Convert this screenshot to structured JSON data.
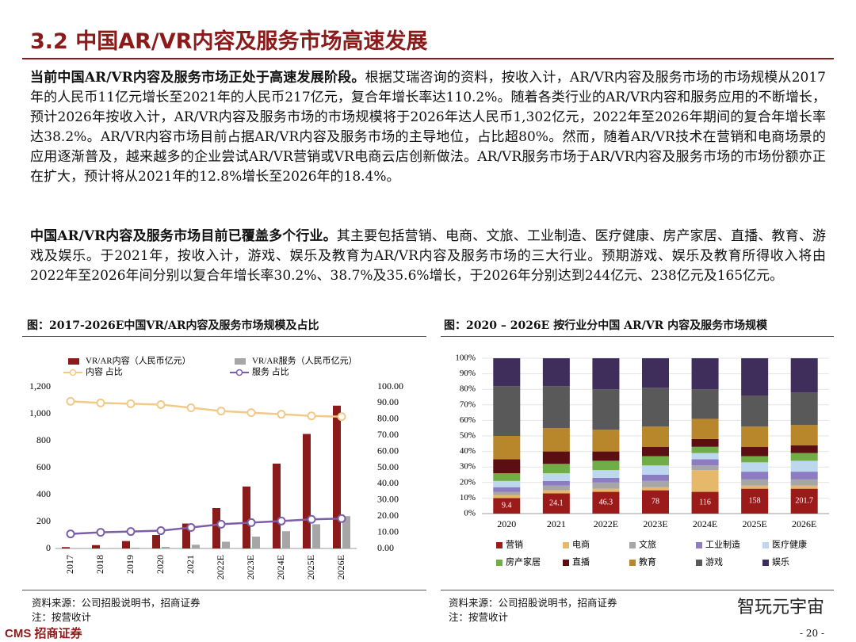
{
  "header": {
    "title": "3.2 中国AR/VR内容及服务市场高速发展"
  },
  "paragraphs": [
    {
      "lead": "当前中国AR/VR内容及服务市场正处于高速发展阶段。",
      "text": "根据艾瑞咨询的资料，按收入计，AR/VR内容及服务市场的市场规模从2017年的人民币11亿元增长至2021年的人民币217亿元，复合年增长率达110.2%。随着各类行业的AR/VR内容和服务应用的不断增长，预计2026年按收入计，AR/VR内容及服务市场的市场规模将于2026年达人民币1,302亿元，2022年至2026年期间的复合年增长率达38.2%。AR/VR内容市场目前占据AR/VR内容及服务市场的主导地位，占比超80%。然而，随着AR/VR技术在营销和电商场景的应用逐渐普及，越来越多的企业尝试AR/VR营销或VR电商云店创新做法。AR/VR服务市场于AR/VR内容及服务市场的市场份额亦正在扩大，预计将从2021年的12.8%增长至2026年的18.4%。"
    },
    {
      "lead": "中国AR/VR内容及服务市场目前已覆盖多个行业。",
      "text": "其主要包括营销、电商、文旅、工业制造、医疗健康、房产家居、直播、教育、游戏及娱乐。于2021年，按收入计，游戏、娱乐及教育为AR/VR内容及服务市场的三大行业。预期游戏、娱乐及教育所得收入将由2022年至2026年间分别以复合年增长率30.2%、38.7%及35.6%增长，于2026年分别达到244亿元、238亿元及165亿元。"
    }
  ],
  "chart_data": [
    {
      "type": "bar",
      "title": "图：2017-2026E中国VR/AR内容及服务市场规模及占比",
      "categories": [
        "2017",
        "2018",
        "2019",
        "2020",
        "2021",
        "2022E",
        "2023E",
        "2024E",
        "2025E",
        "2026E"
      ],
      "series": [
        {
          "name": "VR/AR内容（人民币亿元）",
          "type": "bar",
          "color": "#8b1a1a",
          "values": [
            10,
            25,
            55,
            100,
            185,
            300,
            460,
            630,
            850,
            1060
          ]
        },
        {
          "name": "VR/AR服务（人民币亿元）",
          "type": "bar",
          "color": "#a6a6a6",
          "values": [
            1,
            3,
            6,
            12,
            28,
            50,
            88,
            128,
            180,
            240
          ]
        },
        {
          "name": "内容 占比",
          "type": "line",
          "axis": "y2",
          "color": "#f2c98a",
          "values": [
            91,
            90,
            89.5,
            89,
            87,
            85,
            84,
            83,
            82,
            81.5
          ]
        },
        {
          "name": "服务 占比",
          "type": "line",
          "axis": "y2",
          "color": "#7b5ea7",
          "values": [
            9,
            10,
            10.5,
            11,
            13,
            15,
            16,
            17,
            18,
            18.5
          ]
        }
      ],
      "ylim": [
        0,
        1200
      ],
      "yticks": [
        0,
        200,
        400,
        600,
        800,
        {
          "value": 1000,
          "label": "1,000"
        },
        {
          "value": 1200,
          "label": "1,200"
        }
      ],
      "y2lim": [
        0,
        100
      ],
      "y2ticks": [
        {
          "value": 0,
          "label": "0.00"
        },
        {
          "value": 10,
          "label": "10.00"
        },
        {
          "value": 20,
          "label": "20.00"
        },
        {
          "value": 30,
          "label": "30.00"
        },
        {
          "value": 40,
          "label": "40.00"
        },
        {
          "value": 50,
          "label": "50.00"
        },
        {
          "value": 60,
          "label": "60.00"
        },
        {
          "value": 70,
          "label": "70.00"
        },
        {
          "value": 80,
          "label": "80.00"
        },
        {
          "value": 90,
          "label": "90.00"
        },
        {
          "value": 100,
          "label": "100.00"
        }
      ],
      "grid": false,
      "source": "资料来源：公司招股说明书，招商证券",
      "note": "注：按营收计"
    },
    {
      "type": "stacked_bar",
      "title": "图：2020 – 2026E 按行业分中国 AR/VR 内容及服务市场规模",
      "categories": [
        "2020",
        "2021",
        "2022E",
        "2023E",
        "2024E",
        "2025E",
        "2026E"
      ],
      "series": [
        {
          "name": "营销",
          "color": "#9b1b1b",
          "values": [
            10,
            13,
            14,
            15,
            14,
            16,
            16
          ],
          "data_labels": [
            9.4,
            24.1,
            46.3,
            78,
            116,
            158,
            201.7
          ]
        },
        {
          "name": "电商",
          "color": "#e6b86a",
          "values": [
            2,
            2,
            2,
            2,
            14,
            2,
            2
          ]
        },
        {
          "name": "文旅",
          "color": "#a6a6a6",
          "values": [
            2,
            3,
            4,
            4,
            3,
            4,
            4
          ]
        },
        {
          "name": "工业制造",
          "color": "#8e7cc3",
          "values": [
            3,
            3,
            3,
            4,
            4,
            5,
            5
          ]
        },
        {
          "name": "医疗健康",
          "color": "#bdd7ee",
          "values": [
            4,
            5,
            5,
            6,
            4,
            6,
            7
          ]
        },
        {
          "name": "房产家居",
          "color": "#70ad47",
          "values": [
            5,
            6,
            6,
            6,
            4,
            4,
            5
          ]
        },
        {
          "name": "直播",
          "color": "#5c0f12",
          "values": [
            9,
            8,
            6,
            6,
            5,
            6,
            5
          ]
        },
        {
          "name": "教育",
          "color": "#b8862b",
          "values": [
            15,
            15,
            14,
            13,
            13,
            13,
            13
          ]
        },
        {
          "name": "游戏",
          "color": "#595959",
          "values": [
            32,
            27,
            26,
            25,
            19,
            20,
            21
          ]
        },
        {
          "name": "娱乐",
          "color": "#3f2d5c",
          "values": [
            18,
            18,
            20,
            19,
            20,
            24,
            22
          ]
        }
      ],
      "ylim": [
        0,
        100
      ],
      "yticks": [
        {
          "value": 0,
          "label": "0%"
        },
        {
          "value": 10,
          "label": "10%"
        },
        {
          "value": 20,
          "label": "20%"
        },
        {
          "value": 30,
          "label": "30%"
        },
        {
          "value": 40,
          "label": "40%"
        },
        {
          "value": 50,
          "label": "50%"
        },
        {
          "value": 60,
          "label": "60%"
        },
        {
          "value": 70,
          "label": "70%"
        },
        {
          "value": 80,
          "label": "80%"
        },
        {
          "value": 90,
          "label": "90%"
        },
        {
          "value": 100,
          "label": "100%"
        }
      ],
      "grid": true,
      "source": "资料来源：公司招股说明书，招商证券",
      "note": "注：按营收计"
    }
  ],
  "footer": {
    "logo": "CMS",
    "brand": "招商证券",
    "page": "- 20 -",
    "watermark": "智玩元宇宙"
  }
}
